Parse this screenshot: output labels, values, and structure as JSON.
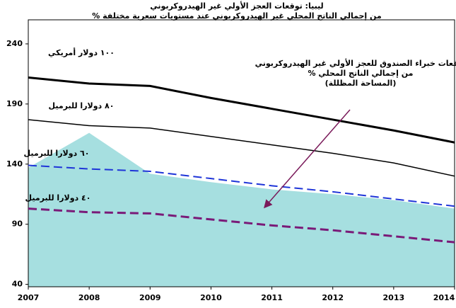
{
  "chart_data": {
    "type": "line",
    "title": [
      "ليبيا: توقعات العجز الأولي غير الهيدروكربوني",
      "% من إجمالي الناتج المحلي غير الهيدروكربوني عند مستويات سعرية مختلفة"
    ],
    "x": [
      2007,
      2008,
      2009,
      2010,
      2011,
      2012,
      2013,
      2014
    ],
    "xlim": [
      2007,
      2014
    ],
    "xticks": [
      2007,
      2008,
      2009,
      2010,
      2011,
      2012,
      2013,
      2014
    ],
    "ylim": [
      38,
      260
    ],
    "yticks": [
      40,
      90,
      140,
      190,
      240
    ],
    "area": {
      "name": [
        "توقعات خبراء الصندوق للعجز الأولي غير الهيدروكربوني",
        "% من إجمالي الناتج المحلي",
        "(المساحة المظللة)"
      ],
      "color": "#a6dfe0",
      "values": [
        137,
        166,
        132,
        125,
        119,
        115,
        110,
        103
      ]
    },
    "series": [
      {
        "name": "١٠٠ دولار أمريكي",
        "color": "#000000",
        "width": 3,
        "dash": false,
        "values": [
          212,
          207,
          205,
          195,
          186,
          177,
          168,
          158
        ]
      },
      {
        "name": "٨٠ دولارا للبرميل",
        "color": "#000000",
        "width": 1.5,
        "dash": false,
        "values": [
          177,
          172,
          170,
          163,
          156,
          149,
          141,
          130
        ]
      },
      {
        "name": "٦٠ دولارا للبرميل",
        "color": "#1f35d8",
        "width": 2,
        "dash": true,
        "values": [
          139,
          136,
          134,
          128,
          122,
          117,
          111,
          105
        ]
      },
      {
        "name": "٤٠ دولارا للبرميل",
        "color": "#7a1a78",
        "width": 3,
        "dash": true,
        "values": [
          103,
          100,
          99,
          94,
          89,
          85,
          80,
          75
        ]
      }
    ]
  }
}
